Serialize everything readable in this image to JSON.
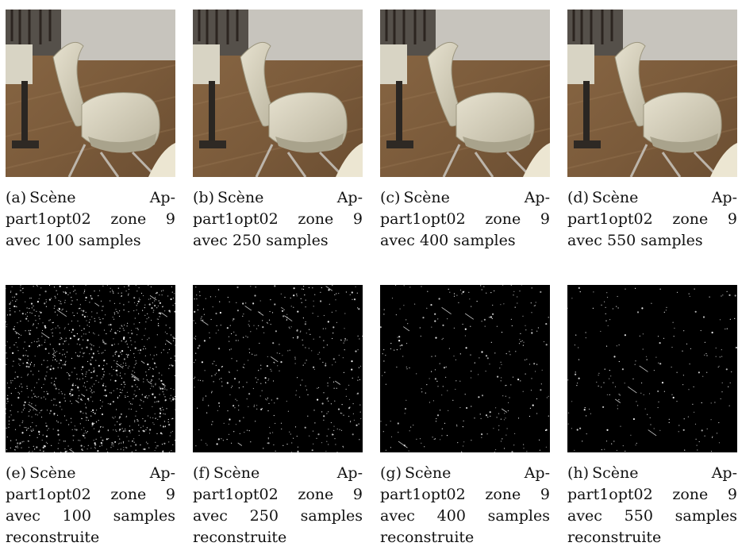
{
  "figure": {
    "panels": [
      {
        "tag": "(a)",
        "text": "Scène Ap-part1opt02 zone 9 avec 100 samples",
        "kind": "render",
        "samples": 100
      },
      {
        "tag": "(b)",
        "text": "Scène Ap-part1opt02 zone 9 avec 250 samples",
        "kind": "render",
        "samples": 250
      },
      {
        "tag": "(c)",
        "text": "Scène Ap-part1opt02 zone 9 avec 400 samples",
        "kind": "render",
        "samples": 400
      },
      {
        "tag": "(d)",
        "text": "Scène Ap-part1opt02 zone 9 avec 550 samples",
        "kind": "render",
        "samples": 550
      },
      {
        "tag": "(e)",
        "text": "Scène Ap-part1opt02 zone 9 avec 100 samples reconstruite",
        "kind": "noise",
        "samples": 100
      },
      {
        "tag": "(f)",
        "text": "Scène Ap-part1opt02 zone 9 avec 250 samples reconstruite",
        "kind": "noise",
        "samples": 250
      },
      {
        "tag": "(g)",
        "text": "Scène Ap-part1opt02 zone 9 avec 400 samples reconstruite",
        "kind": "noise",
        "samples": 400
      },
      {
        "tag": "(h)",
        "text": "Scène Ap-part1opt02 zone 9 avec 550 samples reconstruite",
        "kind": "noise",
        "samples": 550
      }
    ]
  }
}
